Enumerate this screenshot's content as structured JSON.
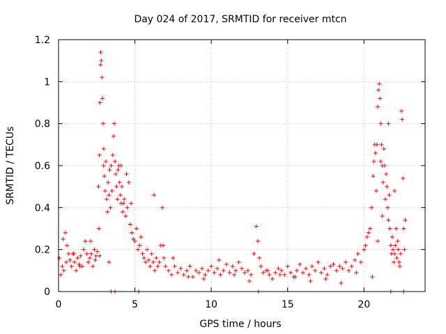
{
  "chart_data": {
    "type": "scatter",
    "title": "Day 024 of 2017, SRMTID for receiver mtcn",
    "xlabel": "GPS time / hours",
    "ylabel": "SRMTID / TECUs",
    "xlim": [
      0,
      24
    ],
    "ylim": [
      0,
      1.2
    ],
    "xticks": [
      0,
      5,
      10,
      15,
      20
    ],
    "xtick_labels": [
      "0",
      "5",
      "10",
      "15",
      "20"
    ],
    "yticks": [
      0,
      0.2,
      0.4,
      0.6,
      0.8,
      1.0,
      1.2
    ],
    "ytick_labels": [
      "0",
      "0.2",
      "0.4",
      "0.6",
      "0.8",
      "1",
      "1.2"
    ],
    "grid": true,
    "marker": "+",
    "marker_color": "#ff0000",
    "series": [
      {
        "name": "SRMTID",
        "x": [
          0.05,
          0.15,
          0.25,
          0.35,
          0.45,
          0.55,
          0.65,
          0.75,
          0.85,
          0.95,
          1.05,
          1.15,
          1.25,
          1.35,
          1.45,
          1.55,
          1.65,
          1.75,
          1.85,
          1.95,
          2.05,
          2.15,
          2.25,
          2.35,
          2.45,
          2.55,
          2.62,
          2.68,
          2.72,
          2.76,
          2.8,
          2.84,
          2.88,
          2.92,
          2.96,
          3.0,
          3.05,
          3.1,
          3.15,
          3.2,
          3.25,
          3.3,
          3.35,
          3.4,
          3.45,
          3.5,
          3.55,
          3.6,
          3.65,
          3.7,
          3.75,
          3.8,
          3.85,
          3.9,
          3.95,
          4.0,
          4.05,
          4.1,
          4.15,
          4.2,
          4.3,
          4.4,
          4.5,
          4.6,
          4.7,
          4.8,
          4.9,
          5.0,
          5.1,
          5.2,
          5.3,
          5.4,
          5.5,
          5.6,
          5.7,
          5.8,
          5.9,
          6.0,
          6.1,
          6.2,
          6.3,
          6.4,
          6.5,
          6.6,
          6.7,
          6.8,
          6.9,
          7.0,
          7.2,
          7.4,
          7.6,
          7.8,
          8.0,
          8.2,
          8.4,
          8.6,
          8.8,
          9.0,
          9.2,
          9.4,
          9.6,
          9.8,
          10.0,
          10.2,
          10.4,
          10.6,
          10.8,
          11.0,
          11.2,
          11.4,
          11.6,
          11.8,
          12.0,
          12.2,
          12.4,
          12.6,
          12.8,
          12.95,
          13.05,
          13.15,
          13.25,
          13.4,
          13.6,
          13.8,
          14.0,
          14.2,
          14.4,
          14.6,
          14.8,
          15.0,
          15.2,
          15.4,
          15.6,
          15.8,
          16.0,
          16.2,
          16.4,
          16.6,
          16.8,
          17.0,
          17.2,
          17.4,
          17.6,
          17.8,
          18.0,
          18.2,
          18.4,
          18.6,
          18.8,
          19.0,
          19.2,
          19.4,
          19.6,
          19.8,
          20.0,
          20.1,
          20.2,
          20.3,
          20.4,
          20.5,
          20.6,
          20.65,
          20.7,
          20.75,
          20.8,
          20.85,
          20.9,
          20.95,
          21.0,
          21.05,
          21.1,
          21.15,
          21.2,
          21.25,
          21.3,
          21.35,
          21.4,
          21.45,
          21.5,
          21.55,
          21.6,
          21.65,
          21.7,
          21.75,
          21.8,
          21.85,
          21.9,
          21.95,
          22.0,
          22.05,
          22.1,
          22.15,
          22.2,
          22.25,
          22.3,
          22.35,
          22.4,
          22.45,
          22.5,
          22.55,
          22.6,
          22.65,
          22.7,
          0.3,
          0.5,
          1.0,
          1.4,
          2.1,
          2.4,
          2.7,
          3.3,
          3.7,
          4.1,
          4.45,
          4.75,
          5.25,
          6.25,
          6.85,
          7.5,
          8.5,
          9.5,
          10.5,
          11.5,
          12.5,
          13.1,
          13.7,
          14.5,
          15.5,
          16.5,
          17.5,
          18.5,
          19.5,
          20.55,
          20.9,
          21.1,
          21.6,
          22.0,
          22.6,
          2.65,
          2.75,
          2.95,
          3.45,
          4.25,
          21.2,
          21.75
        ],
        "y": [
          0.16,
          0.08,
          0.12,
          0.1,
          0.28,
          0.22,
          0.18,
          0.15,
          0.12,
          0.18,
          0.14,
          0.1,
          0.16,
          0.13,
          0.17,
          0.12,
          0.2,
          0.24,
          0.18,
          0.14,
          0.16,
          0.18,
          0.12,
          0.2,
          0.17,
          0.19,
          0.5,
          0.65,
          0.9,
          1.14,
          1.1,
          1.02,
          0.92,
          0.8,
          0.68,
          0.55,
          0.48,
          0.62,
          0.44,
          0.38,
          0.52,
          0.46,
          0.58,
          0.4,
          0.6,
          0.48,
          0.65,
          0.74,
          0.8,
          0.62,
          0.56,
          0.5,
          0.44,
          0.58,
          0.6,
          0.52,
          0.46,
          0.42,
          0.5,
          0.38,
          0.44,
          0.36,
          0.4,
          0.52,
          0.32,
          0.28,
          0.25,
          0.24,
          0.3,
          0.2,
          0.22,
          0.26,
          0.18,
          0.16,
          0.14,
          0.2,
          0.15,
          0.12,
          0.18,
          0.14,
          0.1,
          0.16,
          0.12,
          0.14,
          0.22,
          0.4,
          0.16,
          0.12,
          0.1,
          0.08,
          0.12,
          0.09,
          0.11,
          0.08,
          0.1,
          0.12,
          0.07,
          0.1,
          0.09,
          0.11,
          0.08,
          0.1,
          0.12,
          0.09,
          0.11,
          0.08,
          0.1,
          0.13,
          0.09,
          0.12,
          0.1,
          0.14,
          0.11,
          0.09,
          0.1,
          0.08,
          0.18,
          0.31,
          0.24,
          0.16,
          0.12,
          0.09,
          0.1,
          0.08,
          0.06,
          0.09,
          0.11,
          0.1,
          0.08,
          0.12,
          0.09,
          0.07,
          0.1,
          0.13,
          0.09,
          0.11,
          0.08,
          0.12,
          0.1,
          0.14,
          0.09,
          0.11,
          0.08,
          0.12,
          0.13,
          0.1,
          0.12,
          0.11,
          0.14,
          0.1,
          0.12,
          0.15,
          0.18,
          0.14,
          0.2,
          0.22,
          0.26,
          0.28,
          0.3,
          0.4,
          0.55,
          0.62,
          0.7,
          0.66,
          0.48,
          0.7,
          0.88,
          0.96,
          0.99,
          0.92,
          0.8,
          0.7,
          0.6,
          0.52,
          0.68,
          0.6,
          0.44,
          0.56,
          0.5,
          0.4,
          0.34,
          0.46,
          0.3,
          0.22,
          0.18,
          0.26,
          0.2,
          0.14,
          0.18,
          0.22,
          0.3,
          0.16,
          0.24,
          0.2,
          0.14,
          0.12,
          0.18,
          0.86,
          0.82,
          0.54,
          0.3,
          0.2,
          0.34,
          0.25,
          0.14,
          0.18,
          0.12,
          0.24,
          0.15,
          0.17,
          0.14,
          0.0,
          0.6,
          0.56,
          0.42,
          0.0,
          0.46,
          0.22,
          0.16,
          0.07,
          0.06,
          0.15,
          0.08,
          0.05,
          0.0,
          0.1,
          0.08,
          0.07,
          0.05,
          0.06,
          0.04,
          0.09,
          0.07,
          0.24,
          0.62,
          0.8,
          0.48,
          0.0,
          0.3,
          1.08,
          0.6,
          0.0,
          0.42,
          0.36,
          0.0
        ]
      }
    ]
  }
}
